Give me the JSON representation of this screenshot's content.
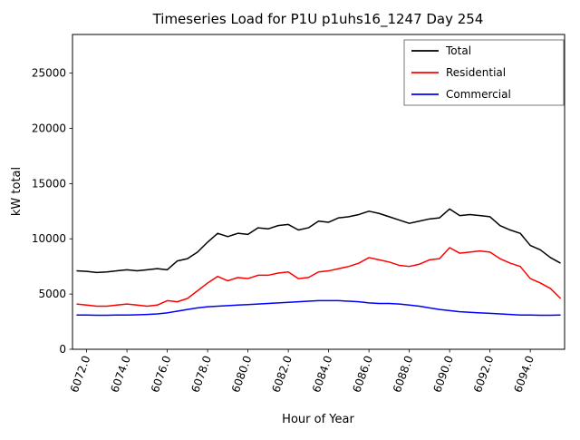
{
  "chart_data": {
    "type": "line",
    "title": "Timeseries Load for P1U p1uhs16_1247  Day 254",
    "xlabel": "Hour of Year",
    "ylabel": "kW total",
    "xlim": [
      6071.3,
      6095.7
    ],
    "ylim": [
      0,
      28500
    ],
    "x_ticks": [
      6072,
      6074,
      6076,
      6078,
      6080,
      6082,
      6084,
      6086,
      6088,
      6090,
      6092,
      6094
    ],
    "y_ticks": [
      0,
      5000,
      10000,
      15000,
      20000,
      25000
    ],
    "grid": false,
    "legend_position": "upper right",
    "x": [
      6071.5,
      6072.0,
      6072.5,
      6073.0,
      6073.5,
      6074.0,
      6074.5,
      6075.0,
      6075.5,
      6076.0,
      6076.5,
      6077.0,
      6077.5,
      6078.0,
      6078.5,
      6079.0,
      6079.5,
      6080.0,
      6080.5,
      6081.0,
      6081.5,
      6082.0,
      6082.5,
      6083.0,
      6083.5,
      6084.0,
      6084.5,
      6085.0,
      6085.5,
      6086.0,
      6086.5,
      6087.0,
      6087.5,
      6088.0,
      6088.5,
      6089.0,
      6089.5,
      6090.0,
      6090.5,
      6091.0,
      6091.5,
      6092.0,
      6092.5,
      6093.0,
      6093.5,
      6094.0,
      6094.5,
      6095.0,
      6095.5
    ],
    "series": [
      {
        "name": "Total",
        "color": "#000000",
        "values": [
          7100,
          7050,
          6950,
          7000,
          7100,
          7200,
          7100,
          7200,
          7300,
          7200,
          8000,
          8200,
          8800,
          9700,
          10500,
          10200,
          10500,
          10400,
          11000,
          10900,
          11200,
          11300,
          10800,
          11000,
          11600,
          11500,
          11900,
          12000,
          12200,
          12500,
          12300,
          12000,
          11700,
          11400,
          11600,
          11800,
          11900,
          12700,
          12100,
          12200,
          12100,
          12000,
          11200,
          10800,
          10500,
          9400,
          9000,
          8300,
          7800
        ]
      },
      {
        "name": "Residential",
        "color": "#ff0000",
        "values": [
          4100,
          4000,
          3900,
          3900,
          4000,
          4100,
          4000,
          3900,
          4000,
          4400,
          4300,
          4600,
          5300,
          6000,
          6600,
          6200,
          6500,
          6400,
          6700,
          6700,
          6900,
          7000,
          6400,
          6500,
          7000,
          7100,
          7300,
          7500,
          7800,
          8300,
          8100,
          7900,
          7600,
          7500,
          7700,
          8100,
          8200,
          9200,
          8700,
          8800,
          8900,
          8800,
          8200,
          7800,
          7500,
          6400,
          6000,
          5500,
          4600
        ]
      },
      {
        "name": "Commercial",
        "color": "#0000ff",
        "values": [
          3100,
          3100,
          3080,
          3080,
          3100,
          3100,
          3120,
          3150,
          3200,
          3300,
          3450,
          3600,
          3750,
          3850,
          3900,
          3950,
          4000,
          4050,
          4100,
          4150,
          4200,
          4250,
          4300,
          4350,
          4400,
          4400,
          4400,
          4350,
          4300,
          4200,
          4150,
          4150,
          4100,
          4000,
          3900,
          3750,
          3600,
          3500,
          3400,
          3350,
          3300,
          3250,
          3200,
          3150,
          3100,
          3100,
          3080,
          3080,
          3100
        ]
      }
    ]
  }
}
